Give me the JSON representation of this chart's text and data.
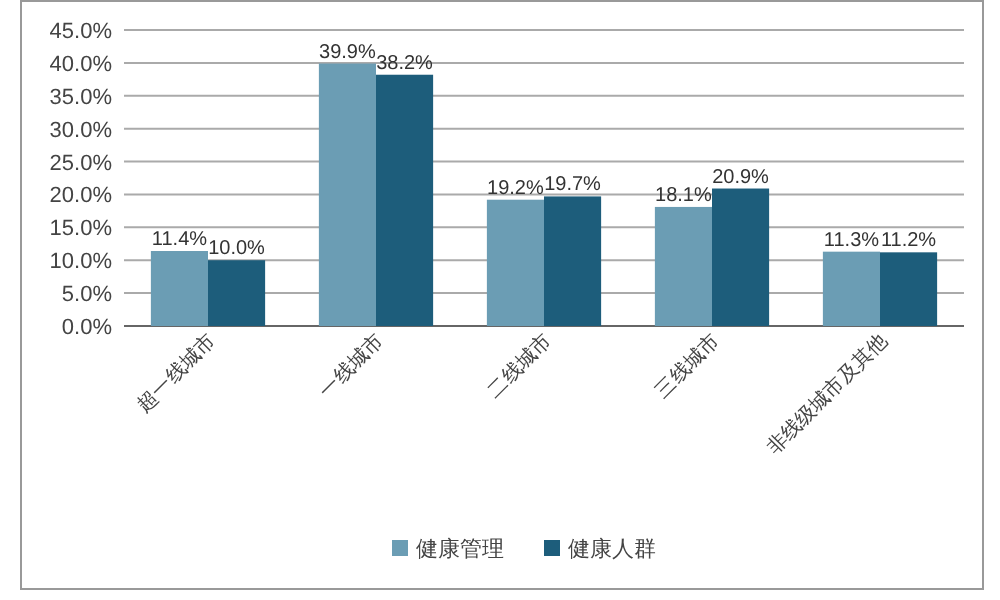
{
  "chart_data": {
    "type": "bar",
    "categories": [
      "超一线城市",
      "一线城市",
      "二线城市",
      "三线城市",
      "非线级城市及其他"
    ],
    "series": [
      {
        "name": "健康管理",
        "color": "#6b9db4",
        "values": [
          11.4,
          39.9,
          19.2,
          18.1,
          11.3
        ],
        "value_labels": [
          "11.4%",
          "39.9%",
          "19.2%",
          "18.1%",
          "11.3%"
        ]
      },
      {
        "name": "健康人群",
        "color": "#1d5d7b",
        "values": [
          10.0,
          38.2,
          19.7,
          20.9,
          11.2
        ],
        "value_labels": [
          "10.0%",
          "38.2%",
          "19.7%",
          "20.9%",
          "11.2%"
        ]
      }
    ],
    "ylim": [
      0,
      45
    ],
    "yticks": [
      {
        "value": 0,
        "label": "0.0%"
      },
      {
        "value": 5,
        "label": "5.0%"
      },
      {
        "value": 10,
        "label": "10.0%"
      },
      {
        "value": 15,
        "label": "15.0%"
      },
      {
        "value": 20,
        "label": "20.0%"
      },
      {
        "value": 25,
        "label": "25.0%"
      },
      {
        "value": 30,
        "label": "30.0%"
      },
      {
        "value": 35,
        "label": "35.0%"
      },
      {
        "value": 40,
        "label": "40.0%"
      },
      {
        "value": 45,
        "label": "45.0%"
      }
    ],
    "grid": "y",
    "legend": "bottom"
  }
}
